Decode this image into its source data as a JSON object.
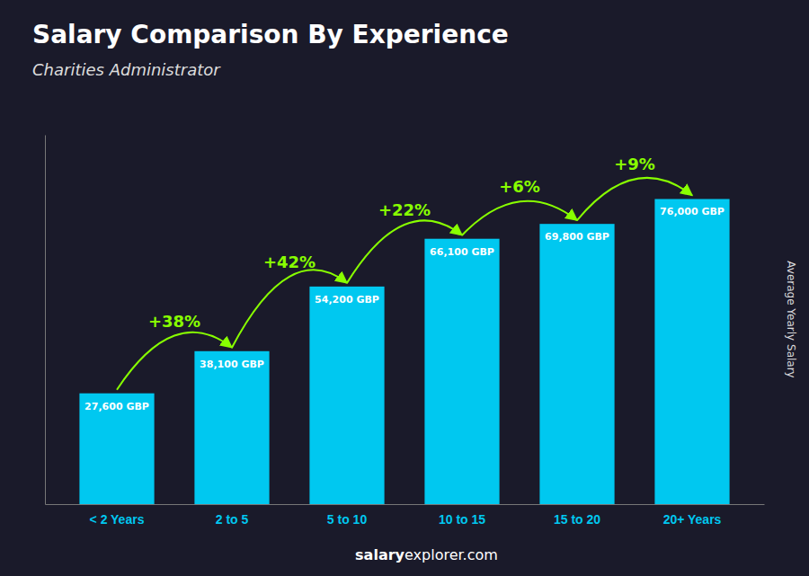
{
  "chart_data": {
    "type": "bar",
    "title": "Salary Comparison By Experience",
    "subtitle": "Charities Administrator",
    "ylabel": "Average Yearly Salary",
    "categories": [
      "< 2 Years",
      "2 to 5",
      "5 to 10",
      "10 to 15",
      "15 to 20",
      "20+ Years"
    ],
    "values": [
      27600,
      38100,
      54200,
      66100,
      69800,
      76000
    ],
    "value_labels": [
      "27,600 GBP",
      "38,100 GBP",
      "54,200 GBP",
      "66,100 GBP",
      "69,800 GBP",
      "76,000 GBP"
    ],
    "data_labels": true,
    "change_labels": [
      null,
      "+38%",
      "+42%",
      "+22%",
      "+6%",
      "+9%"
    ],
    "footer": [
      "salary",
      "explorer.com"
    ],
    "color": "#00c8f0",
    "ylim": [
      0,
      92000
    ],
    "tick_labels": "x",
    "grid": false
  }
}
